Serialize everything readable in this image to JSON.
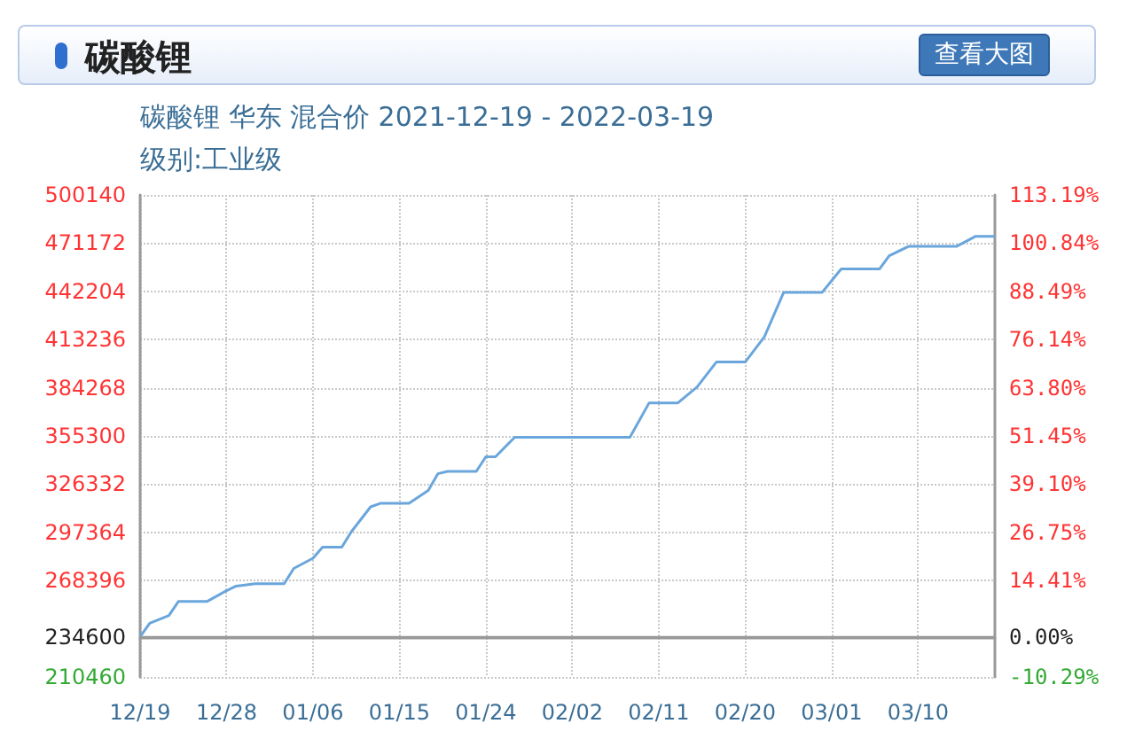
{
  "chart_data": {
    "type": "line",
    "title": "碳酸锂",
    "subtitle": "碳酸锂 华东 混合价 2021-12-19 - 2022-03-19",
    "annotations": [
      "级别:工业级",
      "查看大图"
    ],
    "x": [
      "2021-12-19",
      "2021-12-20",
      "2021-12-22",
      "2021-12-23",
      "2021-12-26",
      "2021-12-28",
      "2021-12-29",
      "2021-12-31",
      "2022-01-03",
      "2022-01-04",
      "2022-01-06",
      "2022-01-07",
      "2022-01-09",
      "2022-01-10",
      "2022-01-12",
      "2022-01-13",
      "2022-01-16",
      "2022-01-18",
      "2022-01-19",
      "2022-01-20",
      "2022-01-23",
      "2022-01-24",
      "2022-01-25",
      "2022-01-27",
      "2022-02-08",
      "2022-02-10",
      "2022-02-13",
      "2022-02-15",
      "2022-02-17",
      "2022-02-20",
      "2022-02-22",
      "2022-02-24",
      "2022-02-28",
      "2022-03-02",
      "2022-03-06",
      "2022-03-07",
      "2022-03-09",
      "2022-03-14",
      "2022-03-16",
      "2022-03-18"
    ],
    "series": [
      {
        "color": "#6aa6dc",
        "values": [
          234600,
          242700,
          247400,
          255900,
          255900,
          262300,
          265100,
          266500,
          266500,
          275700,
          281800,
          288500,
          288500,
          297800,
          312700,
          314800,
          314800,
          322600,
          332600,
          334000,
          334000,
          342800,
          342800,
          354500,
          354500,
          375200,
          375200,
          384800,
          399700,
          399700,
          414900,
          441500,
          441500,
          455700,
          455700,
          463600,
          469200,
          469200,
          475300,
          475300
        ]
      }
    ],
    "xlim": [
      "2021-12-19",
      "2022-03-18"
    ],
    "xticks": [
      {
        "value": "2021-12-19",
        "label": "12/19"
      },
      {
        "value": "2021-12-28",
        "label": "12/28"
      },
      {
        "value": "2022-01-06",
        "label": "01/06"
      },
      {
        "value": "2022-01-15",
        "label": "01/15"
      },
      {
        "value": "2022-01-24",
        "label": "01/24"
      },
      {
        "value": "2022-02-02",
        "label": "02/02"
      },
      {
        "value": "2022-02-11",
        "label": "02/11"
      },
      {
        "value": "2022-02-20",
        "label": "02/20"
      },
      {
        "value": "2022-03-01",
        "label": "03/01"
      },
      {
        "value": "2022-03-10",
        "label": "03/10"
      }
    ],
    "ylim": [
      210460,
      500140
    ],
    "yticks": [
      210460,
      234600,
      268396,
      297364,
      326332,
      355300,
      384268,
      413236,
      442204,
      471172,
      500140
    ],
    "y2lim": [
      -10.29,
      113.19
    ],
    "y2ticks": [
      {
        "value": -10.29,
        "label": "-10.29%"
      },
      {
        "value": 0,
        "label": "0.00%"
      },
      {
        "value": 14.41,
        "label": "14.41%"
      },
      {
        "value": 26.75,
        "label": "26.75%"
      },
      {
        "value": 39.1,
        "label": "39.10%"
      },
      {
        "value": 51.45,
        "label": "51.45%"
      },
      {
        "value": 63.8,
        "label": "63.80%"
      },
      {
        "value": 76.14,
        "label": "76.14%"
      },
      {
        "value": 88.49,
        "label": "88.49%"
      },
      {
        "value": 100.84,
        "label": "100.84%"
      },
      {
        "value": 113.19,
        "label": "113.19%"
      }
    ],
    "grid": true,
    "ref_lines": [
      {
        "axis": "y",
        "value": 234600,
        "color": "#999999"
      }
    ]
  }
}
